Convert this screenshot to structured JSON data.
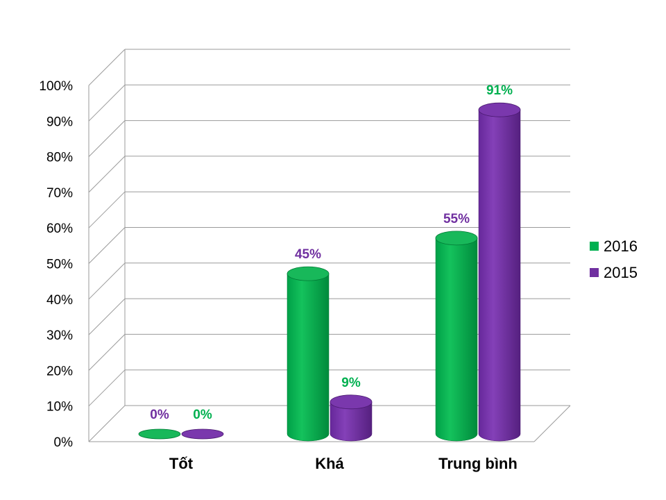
{
  "chart_data": {
    "type": "bar",
    "categories": [
      "Tốt",
      "Khá",
      "Trung bình"
    ],
    "series": [
      {
        "name": "2016",
        "color": "#00B050",
        "values": [
          0,
          45,
          55
        ]
      },
      {
        "name": "2015",
        "color": "#7030A0",
        "values": [
          0,
          9,
          91
        ]
      }
    ],
    "data_labels": [
      [
        "0%",
        "0%"
      ],
      [
        "45%",
        "9%"
      ],
      [
        "55%",
        "91%"
      ]
    ],
    "y_ticks": [
      "0%",
      "10%",
      "20%",
      "30%",
      "40%",
      "50%",
      "60%",
      "70%",
      "80%",
      "90%",
      "100%"
    ],
    "ylim": [
      0,
      100
    ],
    "grid": true,
    "legend_position": "right"
  }
}
